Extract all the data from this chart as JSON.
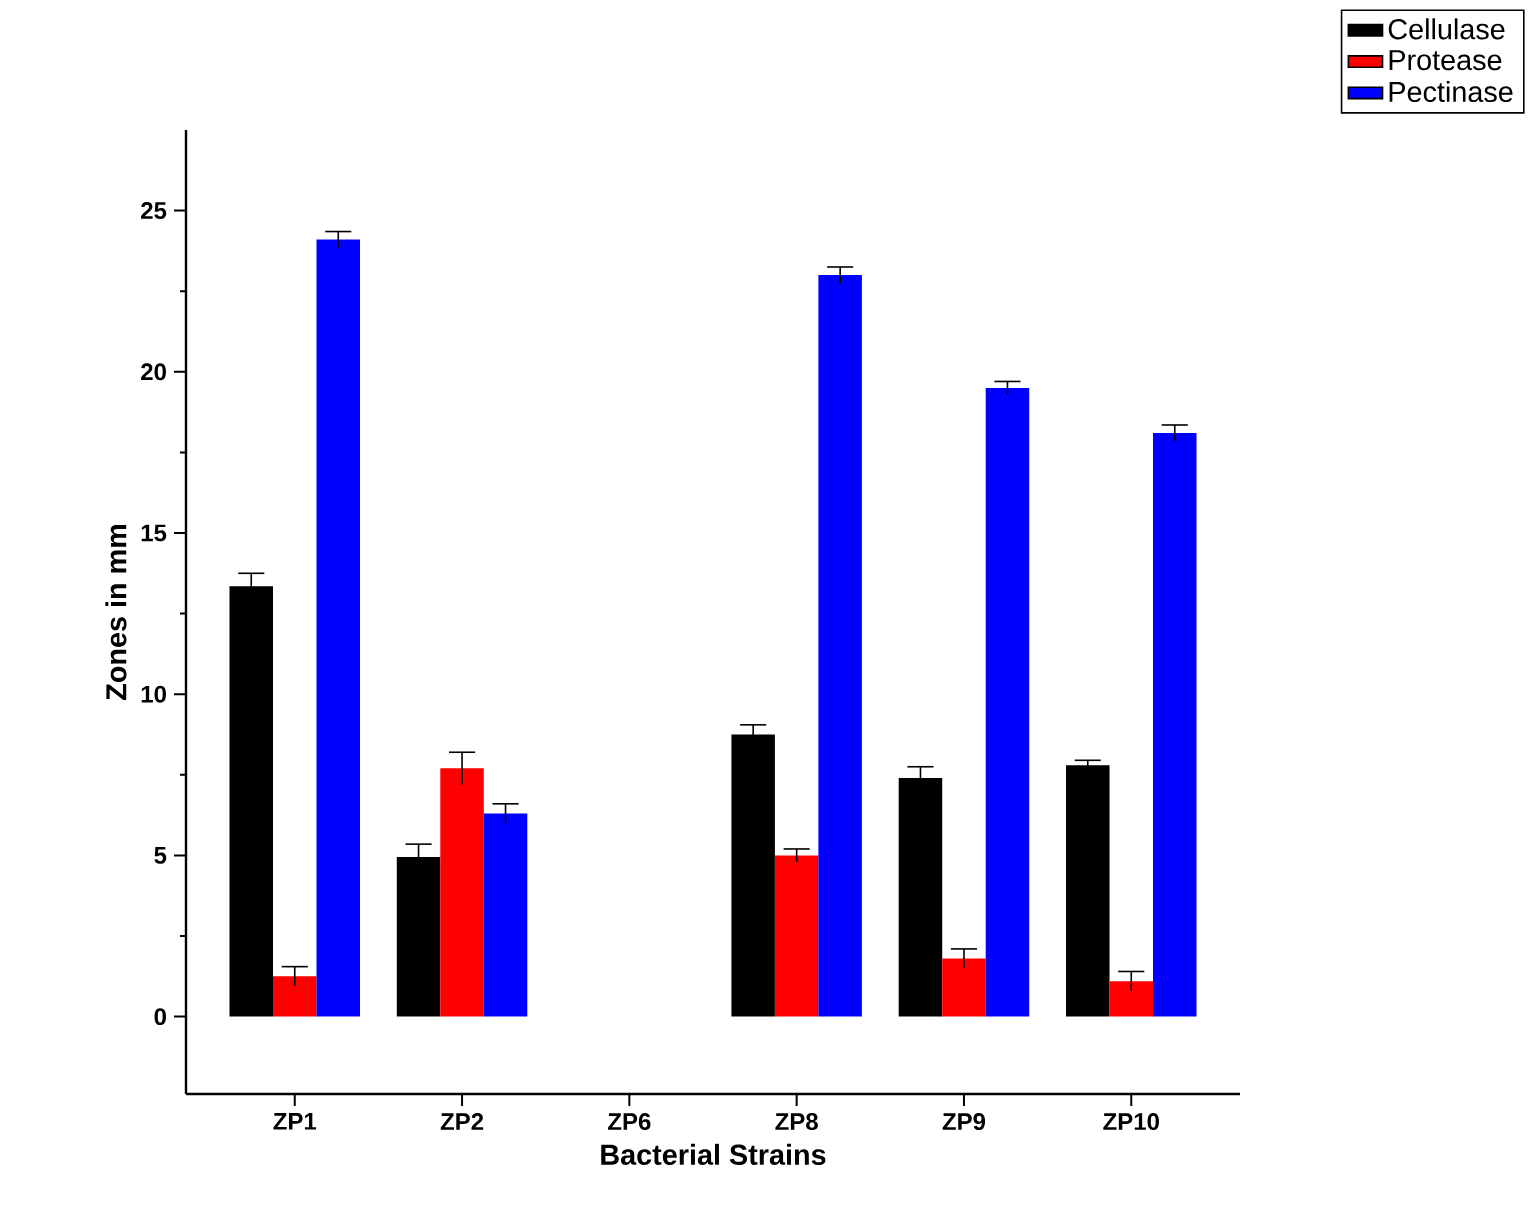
{
  "chart_data": {
    "type": "bar",
    "xlabel": "Bacterial Strains",
    "ylabel": "Zones in mm",
    "categories": [
      "ZP1",
      "ZP2",
      "ZP6",
      "ZP8",
      "ZP9",
      "ZP10"
    ],
    "series": [
      {
        "name": "Cellulase",
        "color": "#000000",
        "values": [
          13.35,
          4.95,
          0,
          8.75,
          7.4,
          7.8
        ],
        "errors": [
          0.4,
          0.4,
          null,
          0.3,
          0.35,
          0.15
        ]
      },
      {
        "name": "Protease",
        "color": "#ff0000",
        "values": [
          1.25,
          7.7,
          0,
          5.0,
          1.8,
          1.1
        ],
        "errors": [
          0.3,
          0.5,
          null,
          0.2,
          0.3,
          0.3
        ]
      },
      {
        "name": "Pectinase",
        "color": "#0000ff",
        "values": [
          24.1,
          6.3,
          0,
          23.0,
          19.5,
          18.1
        ],
        "errors": [
          0.25,
          0.3,
          null,
          0.25,
          0.2,
          0.25
        ]
      }
    ],
    "ylim": [
      -2.4,
      27.5
    ],
    "yticks": [
      0,
      5,
      10,
      15,
      20,
      25
    ],
    "legend": "top right",
    "grid": false
  }
}
